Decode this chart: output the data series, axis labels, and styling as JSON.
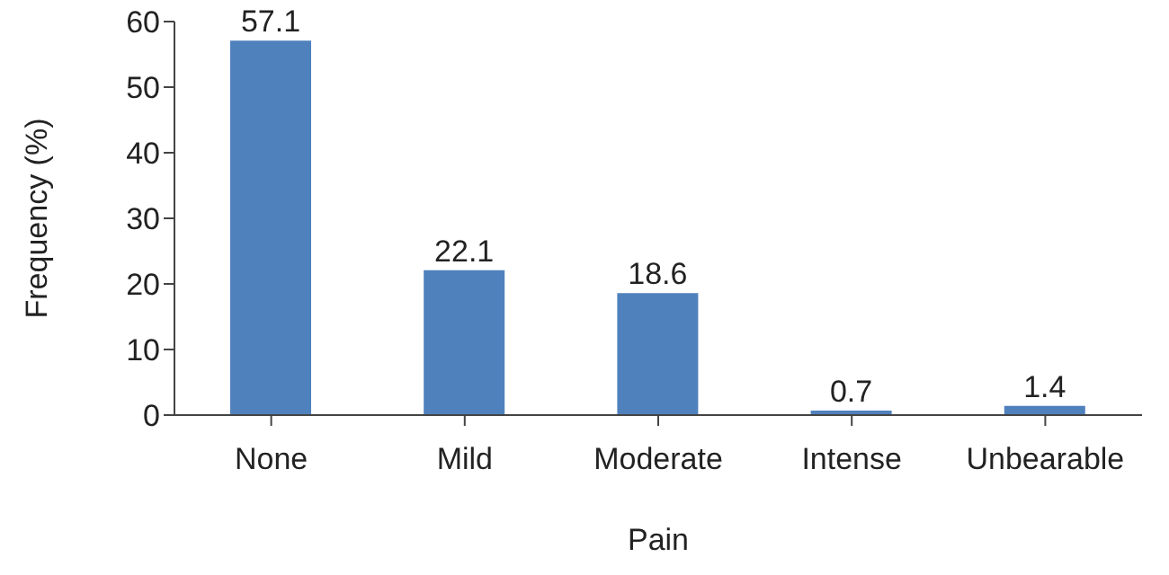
{
  "chart_data": {
    "type": "bar",
    "xlabel": "Pain",
    "ylabel": "Frequency (%)",
    "categories": [
      "None",
      "Mild",
      "Moderate",
      "Intense",
      "Unbearable"
    ],
    "values": [
      57.1,
      22.1,
      18.6,
      0.7,
      1.4
    ],
    "color": "#4f81bd",
    "ylim": [
      0,
      60
    ],
    "yticks": [
      0,
      10,
      20,
      30,
      40,
      50,
      60
    ],
    "grid": false,
    "data_labels": true
  }
}
